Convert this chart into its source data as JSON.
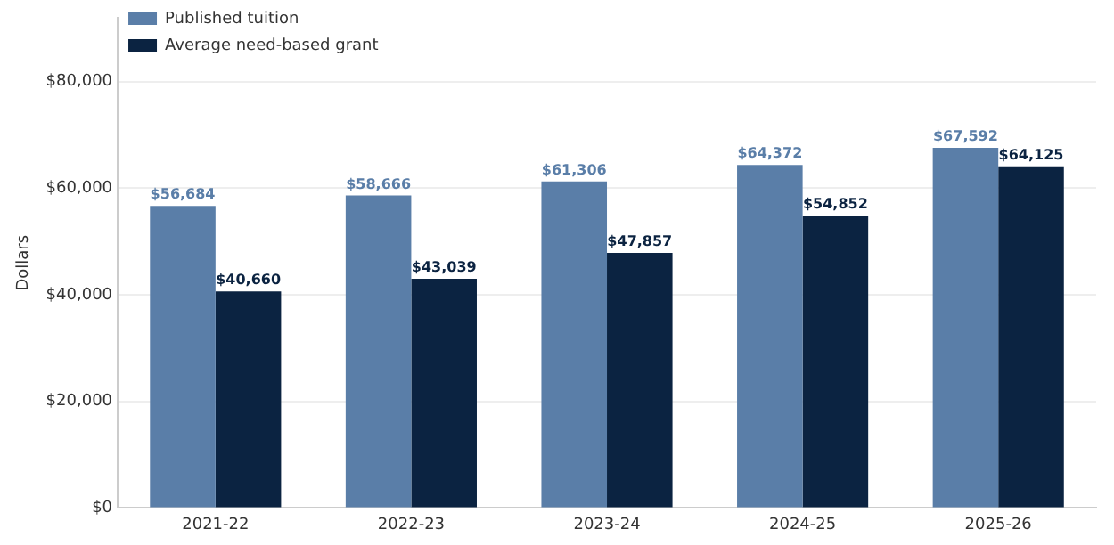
{
  "chart_data": {
    "type": "bar",
    "ylabel": "Dollars",
    "categories": [
      "2021-22",
      "2022-23",
      "2023-24",
      "2024-25",
      "2025-26"
    ],
    "series": [
      {
        "name": "Published tuition",
        "color": "#5a7ea8",
        "values": [
          56684,
          58666,
          61306,
          64372,
          67592
        ],
        "value_labels": [
          "$56,684",
          "$58,666",
          "$61,306",
          "$64,372",
          "$67,592"
        ]
      },
      {
        "name": "Average need-based grant",
        "color": "#0b2341",
        "values": [
          40660,
          43039,
          47857,
          54852,
          64125
        ],
        "value_labels": [
          "$40,660",
          "$43,039",
          "$47,857",
          "$54,852",
          "$64,125"
        ]
      }
    ],
    "ylim": [
      0,
      92000
    ],
    "yticks": [
      {
        "value": 0,
        "label": "$0"
      },
      {
        "value": 20000,
        "label": "$20,000"
      },
      {
        "value": 40000,
        "label": "$40,000"
      },
      {
        "value": 60000,
        "label": "$60,000"
      },
      {
        "value": 80000,
        "label": "$80,000"
      }
    ],
    "grid": "y",
    "legend": "top left"
  }
}
